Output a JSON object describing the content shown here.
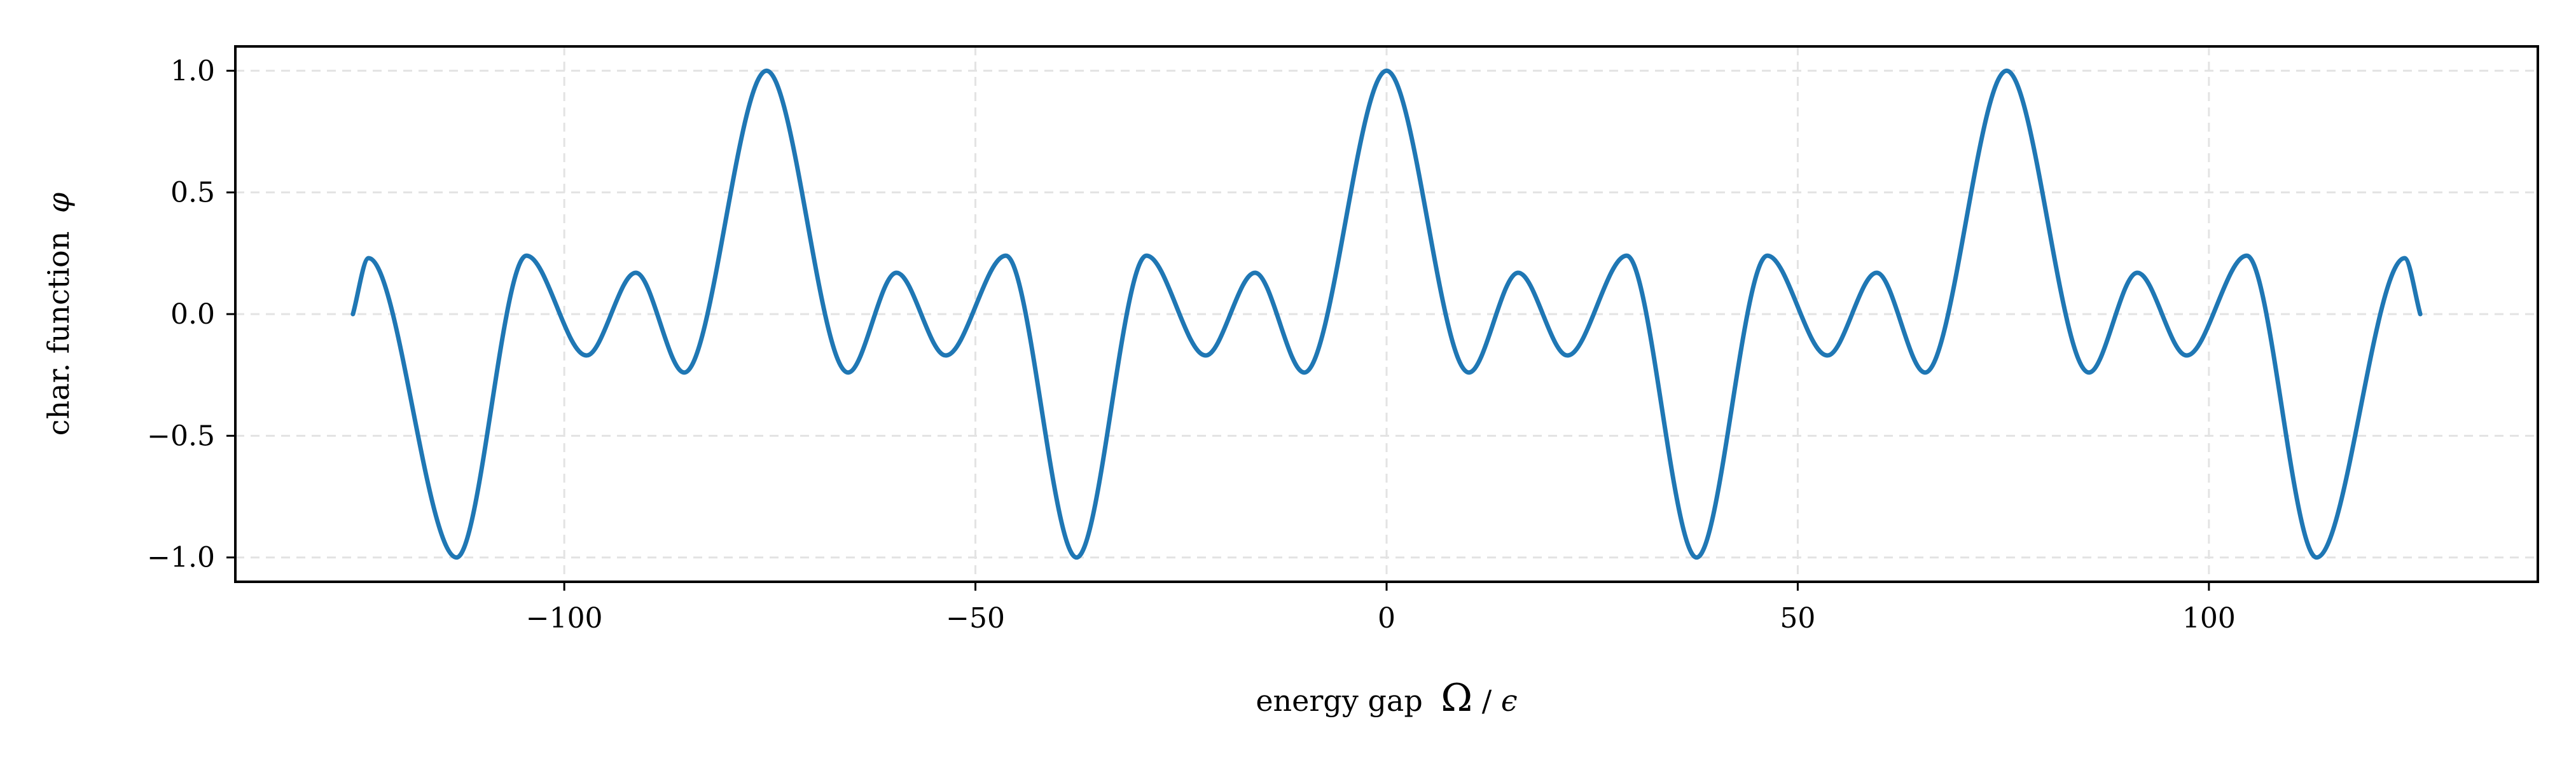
{
  "chart_data": {
    "type": "line",
    "title": "",
    "xlabel": {
      "text": "energy gap",
      "symbol": "Ω",
      "denominator": "ϵ"
    },
    "ylabel": {
      "text": "char. function",
      "symbol": "φ"
    },
    "xlim": [
      -140,
      140
    ],
    "ylim": [
      -1.1,
      1.1
    ],
    "x_ticks": [
      {
        "value": -100,
        "label": "−100"
      },
      {
        "value": -50,
        "label": "−50"
      },
      {
        "value": 0,
        "label": "0"
      },
      {
        "value": 50,
        "label": "50"
      },
      {
        "value": 100,
        "label": "100"
      }
    ],
    "y_ticks": [
      {
        "value": 1.0,
        "label": "1.0"
      },
      {
        "value": 0.5,
        "label": "0.5"
      },
      {
        "value": 0.0,
        "label": "0.0"
      },
      {
        "value": -0.5,
        "label": "−0.5"
      },
      {
        "value": -1.0,
        "label": "−1.0"
      }
    ],
    "grid": true,
    "legend": "none",
    "series": [
      {
        "color": "#1f77b4",
        "x": [
          -125.7,
          -123.8,
          -113.1,
          -104.6,
          -97.3,
          -91.3,
          -85.4,
          -75.4,
          -65.5,
          -59.6,
          -53.6,
          -46.3,
          -37.7,
          -29.2,
          -22.0,
          -16.0,
          -10.0,
          0.0,
          10.0,
          16.0,
          22.0,
          29.2,
          37.7,
          46.3,
          53.6,
          59.6,
          65.5,
          75.4,
          85.4,
          91.3,
          97.3,
          104.6,
          113.1,
          123.8,
          125.7
        ],
        "y": [
          0.0,
          0.23,
          -1.0,
          0.24,
          -0.17,
          0.17,
          -0.24,
          1.0,
          -0.24,
          0.17,
          -0.17,
          0.24,
          -1.0,
          0.24,
          -0.17,
          0.17,
          -0.24,
          1.0,
          -0.24,
          0.17,
          -0.17,
          0.24,
          -1.0,
          0.24,
          -0.17,
          0.17,
          -0.24,
          1.0,
          -0.24,
          0.17,
          -0.17,
          0.24,
          -1.0,
          0.23,
          0.0
        ]
      }
    ]
  }
}
